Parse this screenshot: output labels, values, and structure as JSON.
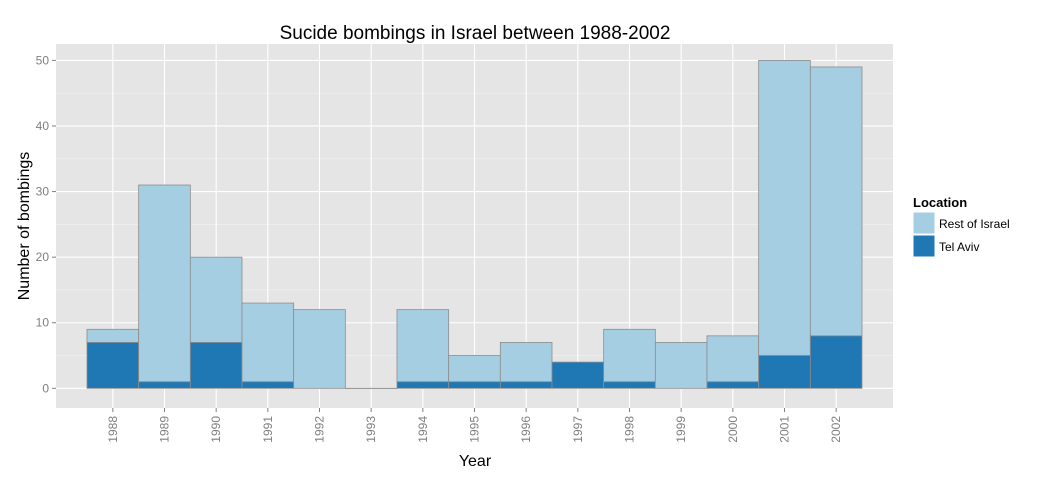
{
  "chart_data": {
    "type": "bar",
    "stacked": true,
    "title": "Sucide bombings in Israel between 1988-2002",
    "xlabel": "Year",
    "ylabel": "Number of bombings",
    "categories": [
      "1988",
      "1989",
      "1990",
      "1991",
      "1992",
      "1993",
      "1994",
      "1995",
      "1996",
      "1997",
      "1998",
      "1999",
      "2000",
      "2001",
      "2002"
    ],
    "series": [
      {
        "name": "Tel Aviv",
        "values": [
          7,
          1,
          7,
          1,
          0,
          0,
          1,
          1,
          1,
          4,
          1,
          0,
          1,
          5,
          8
        ]
      },
      {
        "name": "Rest of Israel",
        "values": [
          2,
          30,
          13,
          12,
          12,
          0,
          11,
          4,
          6,
          0,
          8,
          7,
          7,
          45,
          41
        ]
      }
    ],
    "ylim": [
      -3,
      52.5
    ],
    "yticks": [
      0,
      10,
      20,
      30,
      40,
      50
    ],
    "grid": true,
    "legend": {
      "title": "Location",
      "position": "right",
      "items": [
        "Rest of Israel",
        "Tel Aviv"
      ]
    },
    "colors": {
      "Tel Aviv": "#1f78b4",
      "Rest of Israel": "#a6cee3",
      "panel": "#e5e5e5",
      "grid": "#ffffff",
      "bar_outline": "#8c8c8c"
    }
  }
}
